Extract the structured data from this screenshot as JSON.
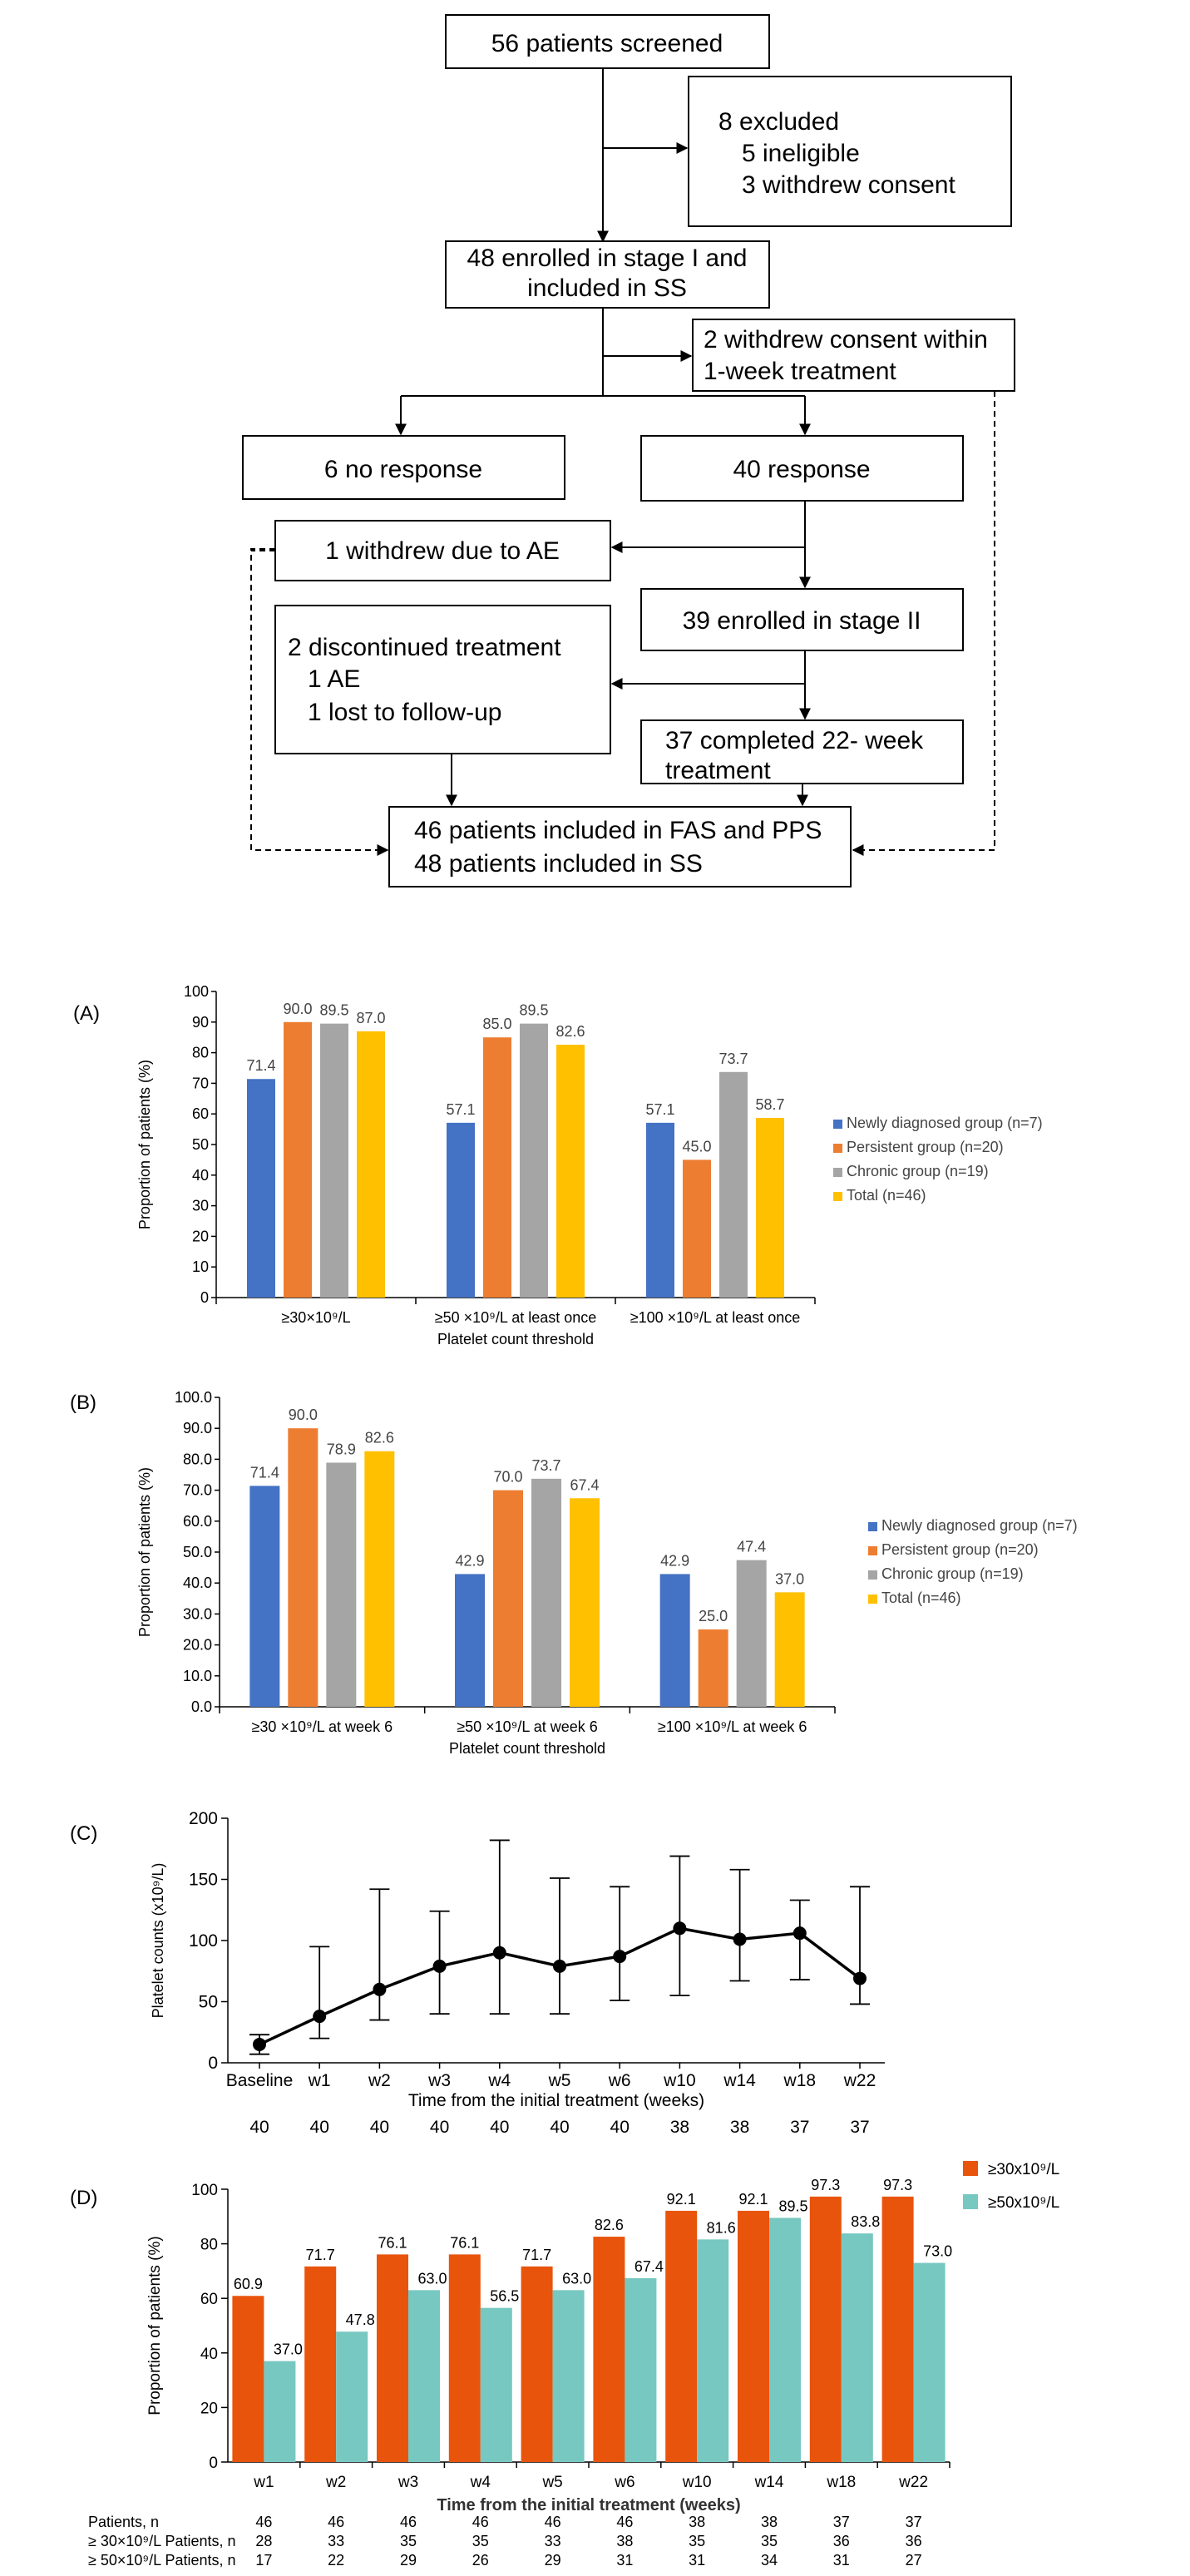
{
  "colors": {
    "newly": "#4472c4",
    "persistent": "#ed7d31",
    "chronic": "#a5a5a5",
    "total": "#ffc000",
    "d_30": "#e8540c",
    "d_50": "#76c8c1",
    "line": "#000000"
  },
  "flowchart": {
    "screened": "56 patients screened",
    "excluded": [
      "8 excluded",
      "5 ineligible",
      "3 withdrew consent"
    ],
    "enrolled_stage1": [
      "48 enrolled in stage I and",
      "included in SS"
    ],
    "withdrew_1week": [
      "2 withdrew consent within",
      "1-week treatment"
    ],
    "no_response": "6 no response",
    "response": "40 response",
    "withdrew_ae": "1 withdrew due to AE",
    "enrolled_stage2": "39 enrolled in stage II",
    "discontinued": [
      "2 discontinued treatment",
      "1 AE",
      "1 lost to follow-up"
    ],
    "completed": [
      "37 completed 22- week",
      "treatment"
    ],
    "final": [
      "46 patients included in FAS and PPS",
      "48 patients included in SS"
    ]
  },
  "chart_data": [
    {
      "panel_label": "(A)",
      "type": "bar",
      "categories": [
        "≥30×10⁹/L",
        "≥50 ×10⁹/L at least once",
        "≥100 ×10⁹/L at least once"
      ],
      "series": [
        {
          "name": "Newly diagnosed group (n=7)",
          "values": [
            71.4,
            57.1,
            57.1
          ]
        },
        {
          "name": "Persistent group (n=20)",
          "values": [
            90.0,
            85.0,
            45.0
          ]
        },
        {
          "name": "Chronic group (n=19)",
          "values": [
            89.5,
            89.5,
            73.7
          ]
        },
        {
          "name": "Total (n=46)",
          "values": [
            87.0,
            82.6,
            58.7
          ]
        }
      ],
      "ylabel": "Proportion of patients (%)",
      "xlabel": "Platelet count threshold",
      "ylim": [
        0,
        100
      ],
      "yticks": [
        "0",
        "10",
        "20",
        "30",
        "40",
        "50",
        "60",
        "70",
        "80",
        "90",
        "100"
      ],
      "legend_position": "right"
    },
    {
      "panel_label": "(B)",
      "type": "bar",
      "categories": [
        "≥30 ×10⁹/L at week 6",
        "≥50 ×10⁹/L at week 6",
        "≥100 ×10⁹/L at week 6"
      ],
      "series": [
        {
          "name": "Newly diagnosed group (n=7)",
          "values": [
            71.4,
            42.9,
            42.9
          ]
        },
        {
          "name": "Persistent group (n=20)",
          "values": [
            90.0,
            70.0,
            25.0
          ]
        },
        {
          "name": "Chronic group (n=19)",
          "values": [
            78.9,
            73.7,
            47.4
          ]
        },
        {
          "name": "Total (n=46)",
          "values": [
            82.6,
            67.4,
            37.0
          ]
        }
      ],
      "ylabel": "Proportion of patients (%)",
      "xlabel": "Platelet count threshold",
      "ylim": [
        0,
        100
      ],
      "yticks": [
        "0.0",
        "10.0",
        "20.0",
        "30.0",
        "40.0",
        "50.0",
        "60.0",
        "70.0",
        "80.0",
        "90.0",
        "100.0"
      ],
      "legend_position": "right"
    },
    {
      "panel_label": "(C)",
      "type": "line",
      "x": [
        "Baseline",
        "w1",
        "w2",
        "w3",
        "w4",
        "w5",
        "w6",
        "w10",
        "w14",
        "w18",
        "w22"
      ],
      "y": [
        15,
        38,
        60,
        79,
        90,
        79,
        87,
        110,
        101,
        106,
        69
      ],
      "err_low": [
        7,
        20,
        35,
        40,
        40,
        40,
        51,
        55,
        67,
        68,
        48
      ],
      "err_high": [
        23,
        95,
        142,
        124,
        182,
        151,
        144,
        169,
        158,
        133,
        144
      ],
      "n_row": [
        "40",
        "40",
        "40",
        "40",
        "40",
        "40",
        "40",
        "38",
        "38",
        "37",
        "37"
      ],
      "ylabel": "Platelet counts (x10⁹/L)",
      "xlabel": "Time from the initial treatment (weeks)",
      "ylim": [
        0,
        200
      ],
      "yticks": [
        "0",
        "50",
        "100",
        "150",
        "200"
      ]
    },
    {
      "panel_label": "(D)",
      "type": "bar",
      "categories": [
        "w1",
        "w2",
        "w3",
        "w4",
        "w5",
        "w6",
        "w10",
        "w14",
        "w18",
        "w22"
      ],
      "series": [
        {
          "name": "≥30x10⁹/L",
          "values": [
            60.9,
            71.7,
            76.1,
            76.1,
            71.7,
            82.6,
            92.1,
            92.1,
            97.3,
            97.3
          ]
        },
        {
          "name": "≥50x10⁹/L",
          "values": [
            37.0,
            47.8,
            63.0,
            56.5,
            63.0,
            67.4,
            81.6,
            89.5,
            83.8,
            73.0
          ]
        }
      ],
      "ylabel": "Proportion of patients (%)",
      "xlabel": "Time from the initial treatment (weeks)",
      "ylim": [
        0,
        100
      ],
      "yticks": [
        "0",
        "20",
        "40",
        "60",
        "80",
        "100"
      ],
      "legend_position": "top-right",
      "table": [
        {
          "label": "Patients, n",
          "values": [
            "46",
            "46",
            "46",
            "46",
            "46",
            "46",
            "38",
            "38",
            "37",
            "37"
          ]
        },
        {
          "label": "≥ 30×10⁹/L Patients, n",
          "values": [
            "28",
            "33",
            "35",
            "35",
            "33",
            "38",
            "35",
            "35",
            "36",
            "36"
          ]
        },
        {
          "label": "≥ 50×10⁹/L Patients, n",
          "values": [
            "17",
            "22",
            "29",
            "26",
            "29",
            "31",
            "31",
            "34",
            "31",
            "27"
          ]
        }
      ]
    }
  ]
}
